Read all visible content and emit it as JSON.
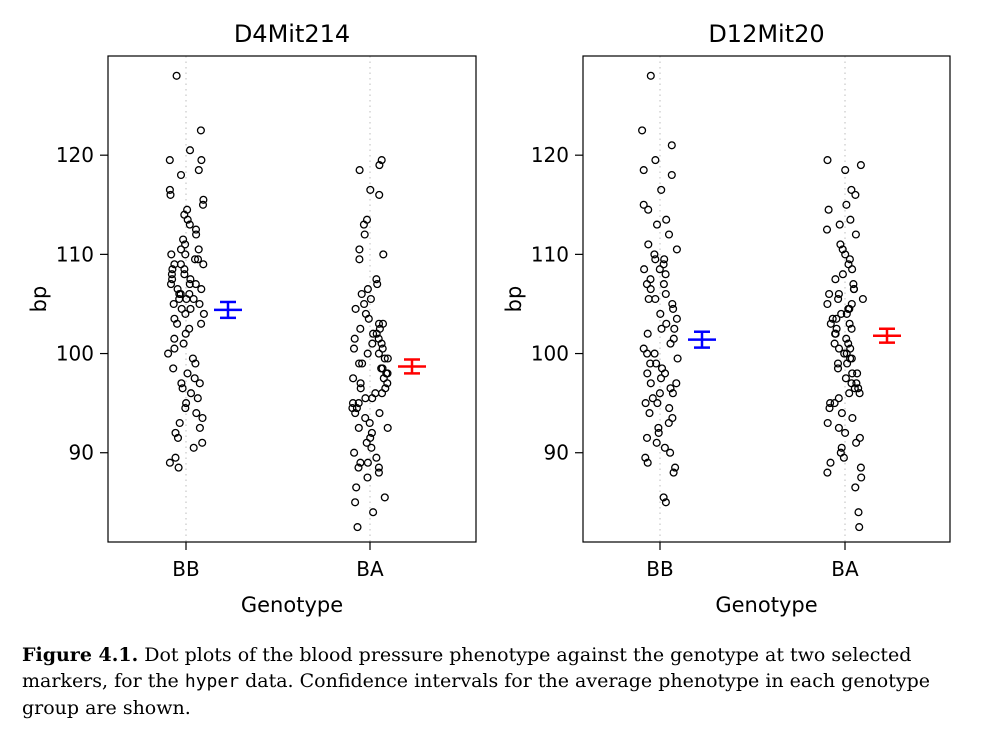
{
  "chart_data": [
    {
      "type": "scatter",
      "title": "D4Mit214",
      "xlabel": "Genotype",
      "ylabel": "bp",
      "ylim": [
        81,
        130
      ],
      "yticks": [
        90,
        100,
        110,
        120
      ],
      "categories": [
        "BB",
        "BA"
      ],
      "seed": 7,
      "points": {
        "BB": [
          128,
          122.5,
          120.5,
          119.5,
          119.5,
          118.5,
          118,
          116.5,
          116,
          115.5,
          115,
          114.5,
          114,
          113.5,
          113,
          112.5,
          112,
          111.5,
          111,
          110.5,
          110.5,
          110,
          110,
          109.5,
          109.5,
          109,
          109,
          109,
          108.5,
          108.5,
          108,
          108,
          107.5,
          107.5,
          107,
          107,
          107,
          106.5,
          106.5,
          106,
          106,
          106,
          105.5,
          105.5,
          105.5,
          105,
          105,
          104.5,
          104.5,
          104,
          104,
          103.5,
          103,
          103,
          102.5,
          102,
          101.5,
          101,
          100.5,
          100,
          99.5,
          99,
          98.5,
          98,
          97.5,
          97,
          97,
          96.5,
          96,
          95.5,
          95,
          94.5,
          94,
          93.5,
          93,
          92.5,
          92,
          91.5,
          91,
          90.5,
          89.5,
          89,
          88.5
        ],
        "BA": [
          119.5,
          119,
          118.5,
          116.5,
          116,
          113.5,
          113,
          112,
          110.5,
          110,
          109.5,
          107.5,
          107,
          106.5,
          106,
          105.5,
          105,
          104.5,
          104,
          103.5,
          103,
          103,
          102.5,
          102.5,
          102,
          102,
          101.5,
          101.5,
          101,
          101,
          100.5,
          100.5,
          100,
          100,
          99.5,
          99.5,
          99,
          99,
          98.5,
          98.5,
          98,
          98,
          97.5,
          97.5,
          97,
          97,
          96.5,
          96.5,
          96,
          96,
          95.5,
          95.5,
          95,
          95,
          94.5,
          94.5,
          94,
          94,
          93.5,
          93,
          92.5,
          92.5,
          92,
          91.5,
          91,
          90.5,
          90,
          89.5,
          89,
          89,
          88.5,
          88.5,
          88,
          87.5,
          86.5,
          85.5,
          85,
          84,
          82.5
        ]
      },
      "ci": [
        {
          "category": "BB",
          "mean": 104.4,
          "lower": 103.6,
          "upper": 105.2,
          "color": "#0000ff"
        },
        {
          "category": "BA",
          "mean": 98.7,
          "lower": 98.0,
          "upper": 99.4,
          "color": "#ff0000"
        }
      ]
    },
    {
      "type": "scatter",
      "title": "D12Mit20",
      "xlabel": "Genotype",
      "ylabel": "bp",
      "ylim": [
        81,
        130
      ],
      "yticks": [
        90,
        100,
        110,
        120
      ],
      "categories": [
        "BB",
        "BA"
      ],
      "seed": 19,
      "points": {
        "BB": [
          128,
          122.5,
          121,
          119.5,
          118.5,
          118,
          116.5,
          115,
          114.5,
          113.5,
          113,
          112,
          111,
          110.5,
          110,
          109.5,
          109.5,
          109,
          108.5,
          108.5,
          108,
          107.5,
          107,
          107,
          106.5,
          106,
          105.5,
          105.5,
          105,
          104.5,
          104,
          103.5,
          103,
          102.5,
          102.5,
          102,
          101.5,
          101,
          100.5,
          100,
          100,
          99.5,
          99,
          99,
          98.5,
          98,
          98,
          97.5,
          97,
          97,
          96.5,
          96,
          96,
          95.5,
          95,
          95,
          94.5,
          94,
          93.5,
          93,
          92.5,
          92,
          91.5,
          91,
          90.5,
          90,
          89.5,
          89,
          88.5,
          88,
          85.5,
          85
        ],
        "BA": [
          119.5,
          119,
          118.5,
          116.5,
          116,
          115,
          114.5,
          113.5,
          113,
          112.5,
          112,
          111,
          110.5,
          110,
          109.5,
          109,
          108.5,
          108,
          107.5,
          107,
          106.5,
          106.5,
          106,
          106,
          105.5,
          105.5,
          105,
          105,
          104.5,
          104.5,
          104,
          104,
          103.5,
          103.5,
          103,
          103,
          102.5,
          102.5,
          102,
          102,
          101.5,
          101,
          101,
          100.5,
          100.5,
          100,
          100,
          99.5,
          99.5,
          99,
          99,
          98.5,
          98,
          98,
          97.5,
          97,
          97,
          96.5,
          96.5,
          96,
          96,
          95.5,
          95,
          95,
          94.5,
          94,
          93.5,
          93,
          92.5,
          92,
          91.5,
          91,
          90.5,
          90,
          89.5,
          89,
          88.5,
          88,
          87.5,
          86.5,
          84,
          82.5
        ]
      },
      "ci": [
        {
          "category": "BB",
          "mean": 101.4,
          "lower": 100.6,
          "upper": 102.2,
          "color": "#0000ff"
        },
        {
          "category": "BA",
          "mean": 101.8,
          "lower": 101.1,
          "upper": 102.5,
          "color": "#ff0000"
        }
      ]
    }
  ],
  "caption": {
    "label": "Figure 4.1.",
    "text_before_code": " Dot plots of the blood pressure phenotype against the genotype at two selected markers, for the ",
    "code": "hyper",
    "text_after_code": " data. Confidence intervals for the average phenotype in each genotype group are shown."
  }
}
